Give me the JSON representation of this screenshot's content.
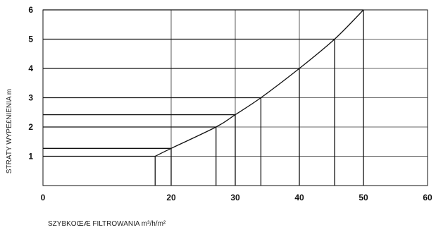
{
  "chart_data": {
    "type": "line",
    "title": "",
    "xlabel": "SZYBKOŒÆ FILTROWANIA m³/h/m²",
    "ylabel": "STRATY WYPE£NIENIA m",
    "xlim": [
      0,
      60
    ],
    "ylim": [
      0,
      6
    ],
    "xticks": [
      "0",
      "20",
      "30",
      "40",
      "50",
      "60"
    ],
    "yticks": [
      "1",
      "2",
      "3",
      "4",
      "5",
      "6"
    ],
    "grid": true,
    "series": [
      {
        "x": [
          17.5,
          20,
          27,
          30,
          34,
          40,
          45.5,
          50
        ],
        "values": [
          1.0,
          1.27,
          2.0,
          2.42,
          3.0,
          4.0,
          5.0,
          6.0
        ]
      }
    ],
    "guide_points": [
      {
        "x": 17.5,
        "y": 1.0
      },
      {
        "x": 20,
        "y": 1.27
      },
      {
        "x": 27,
        "y": 2.0
      },
      {
        "x": 30,
        "y": 2.42
      },
      {
        "x": 34,
        "y": 3.0
      },
      {
        "x": 40,
        "y": 4.0
      },
      {
        "x": 45.5,
        "y": 5.0
      },
      {
        "x": 50,
        "y": 6.0
      }
    ]
  }
}
